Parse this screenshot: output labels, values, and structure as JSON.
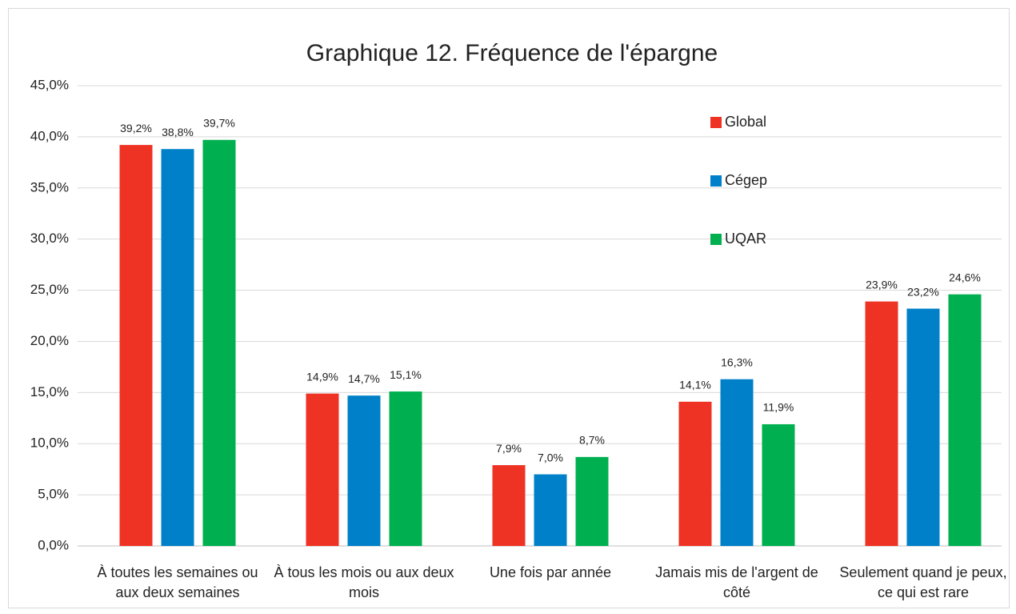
{
  "chart_data": {
    "type": "bar",
    "title": "Graphique 12. Fréquence de l'épargne",
    "categories": [
      "À toutes les semaines ou aux deux semaines",
      "À tous les mois ou aux deux mois",
      "Une fois par année",
      "Jamais mis de l'argent de côté",
      "Seulement quand je peux, ce qui est rare"
    ],
    "series": [
      {
        "name": "Global",
        "color": "#ee3224",
        "values": [
          39.2,
          14.9,
          7.9,
          14.1,
          23.9
        ],
        "value_labels": [
          "39,2%",
          "14,9%",
          "7,9%",
          "14,1%",
          "23,9%"
        ]
      },
      {
        "name": "Cégep",
        "color": "#0080c8",
        "values": [
          38.8,
          14.7,
          7.0,
          16.3,
          23.2
        ],
        "value_labels": [
          "38,8%",
          "14,7%",
          "7,0%",
          "16,3%",
          "23,2%"
        ]
      },
      {
        "name": "UQAR",
        "color": "#00b050",
        "values": [
          39.7,
          15.1,
          8.7,
          11.9,
          24.6
        ],
        "value_labels": [
          "39,7%",
          "15,1%",
          "8,7%",
          "11,9%",
          "24,6%"
        ]
      }
    ],
    "ylim": [
      0,
      45
    ],
    "yticks": [
      {
        "value": 0,
        "label": "0,0%"
      },
      {
        "value": 5,
        "label": "5,0%"
      },
      {
        "value": 10,
        "label": "10,0%"
      },
      {
        "value": 15,
        "label": "15,0%"
      },
      {
        "value": 20,
        "label": "20,0%"
      },
      {
        "value": 25,
        "label": "25,0%"
      },
      {
        "value": 30,
        "label": "30,0%"
      },
      {
        "value": 35,
        "label": "35,0%"
      },
      {
        "value": 40,
        "label": "40,0%"
      },
      {
        "value": 45,
        "label": "45,0%"
      }
    ],
    "grid": true
  }
}
